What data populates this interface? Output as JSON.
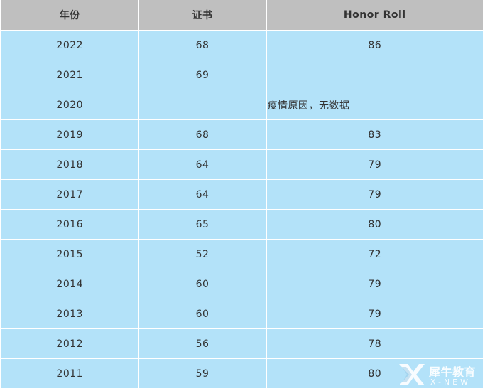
{
  "table": {
    "headers": [
      "年份",
      "证书",
      "Honor Roll"
    ],
    "rows": [
      {
        "year": "2022",
        "certificate": "68",
        "honor_roll": "86",
        "note": ""
      },
      {
        "year": "2021",
        "certificate": "69",
        "honor_roll": "",
        "note": ""
      },
      {
        "year": "2020",
        "certificate": "",
        "honor_roll": "",
        "note": "疫情原因，无数据"
      },
      {
        "year": "2019",
        "certificate": "68",
        "honor_roll": "83",
        "note": ""
      },
      {
        "year": "2018",
        "certificate": "64",
        "honor_roll": "79",
        "note": ""
      },
      {
        "year": "2017",
        "certificate": "64",
        "honor_roll": "79",
        "note": ""
      },
      {
        "year": "2016",
        "certificate": "65",
        "honor_roll": "80",
        "note": ""
      },
      {
        "year": "2015",
        "certificate": "52",
        "honor_roll": "72",
        "note": ""
      },
      {
        "year": "2014",
        "certificate": "60",
        "honor_roll": "79",
        "note": ""
      },
      {
        "year": "2013",
        "certificate": "60",
        "honor_roll": "79",
        "note": ""
      },
      {
        "year": "2012",
        "certificate": "56",
        "honor_roll": "78",
        "note": ""
      },
      {
        "year": "2011",
        "certificate": "59",
        "honor_roll": "80",
        "note": ""
      }
    ]
  },
  "watermark": {
    "brand_cn": "犀牛教育",
    "brand_en": "X-NEW"
  },
  "colors": {
    "header_bg": "#bfbfbf",
    "row_bg": "#b3e2f9",
    "text": "#333333"
  }
}
